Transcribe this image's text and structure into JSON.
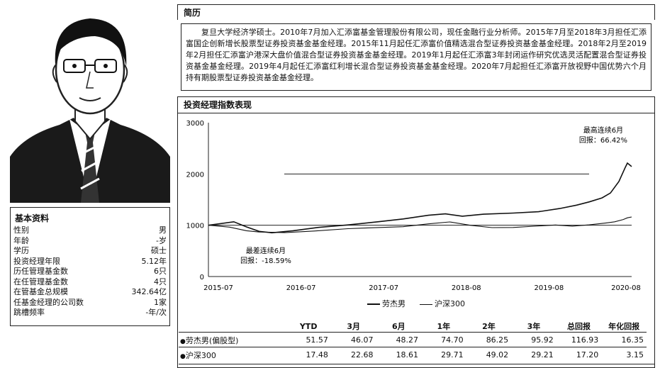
{
  "bio_section": {
    "title": "简历",
    "text": "复旦大学经济学硕士。2010年7月加入汇添富基金管理股份有限公司，现任金融行业分析师。2015年7月至2018年3月担任汇添富国企创新增长股票型证券投资基金基金经理。2015年11月起任汇添富价值精选混合型证券投资基金基金经理。2018年2月至2019年2月担任汇添富沪港深大盘价值混合型证券投资基金基金经理。2019年1月起任汇添富3年封闭运作研究优选灵活配置混合型证券投资基金基金经理。2019年4月起任汇添富红利增长混合型证券投资基金基金经理。2020年7月起担任汇添富开放视野中国优势六个月持有期股票型证券投资基金基金经理。"
  },
  "basic_info": {
    "title": "基本资料",
    "rows": [
      {
        "label": "性别",
        "value": "男"
      },
      {
        "label": "年龄",
        "value": "-岁"
      },
      {
        "label": "学历",
        "value": "硕士"
      },
      {
        "label": "投资经理年限",
        "value": "5.12年"
      },
      {
        "label": "历任管理基金数",
        "value": "6只"
      },
      {
        "label": "在任管理基金数",
        "value": "4只"
      },
      {
        "label": "在管基金总规模",
        "value": "342.64亿"
      },
      {
        "label": "任基金经理的公司数",
        "value": "1家"
      },
      {
        "label": "跳槽频率",
        "value": "-年/次"
      }
    ]
  },
  "chart_section": {
    "title": "投资经理指数表现"
  },
  "chart_data": {
    "type": "line",
    "title": "",
    "ylim": [
      0,
      3000
    ],
    "yticks": [
      0,
      1000,
      2000,
      3000
    ],
    "xticks": [
      "2015-07",
      "2016-07",
      "2017-07",
      "2018-08",
      "2019-08",
      "2020-08"
    ],
    "series": [
      {
        "name": "劳杰男",
        "color": "#111111",
        "points": [
          [
            0,
            1000
          ],
          [
            0.06,
            1060
          ],
          [
            0.09,
            960
          ],
          [
            0.12,
            880
          ],
          [
            0.15,
            860
          ],
          [
            0.2,
            900
          ],
          [
            0.26,
            960
          ],
          [
            0.33,
            1000
          ],
          [
            0.4,
            1060
          ],
          [
            0.46,
            1120
          ],
          [
            0.52,
            1200
          ],
          [
            0.56,
            1230
          ],
          [
            0.6,
            1180
          ],
          [
            0.65,
            1210
          ],
          [
            0.72,
            1230
          ],
          [
            0.78,
            1260
          ],
          [
            0.83,
            1330
          ],
          [
            0.87,
            1400
          ],
          [
            0.9,
            1460
          ],
          [
            0.93,
            1530
          ],
          [
            0.95,
            1620
          ],
          [
            0.97,
            1850
          ],
          [
            0.985,
            2130
          ],
          [
            0.99,
            2220
          ],
          [
            1.0,
            2150
          ]
        ]
      },
      {
        "name": "沪深300",
        "color": "#111111",
        "points": [
          [
            0,
            1000
          ],
          [
            0.05,
            970
          ],
          [
            0.09,
            900
          ],
          [
            0.12,
            870
          ],
          [
            0.18,
            850
          ],
          [
            0.25,
            880
          ],
          [
            0.33,
            930
          ],
          [
            0.4,
            960
          ],
          [
            0.46,
            980
          ],
          [
            0.52,
            1030
          ],
          [
            0.57,
            1060
          ],
          [
            0.62,
            990
          ],
          [
            0.67,
            950
          ],
          [
            0.72,
            960
          ],
          [
            0.77,
            990
          ],
          [
            0.82,
            1010
          ],
          [
            0.86,
            980
          ],
          [
            0.9,
            1000
          ],
          [
            0.94,
            1040
          ],
          [
            0.96,
            1070
          ],
          [
            0.98,
            1120
          ],
          [
            0.99,
            1150
          ],
          [
            1.0,
            1160
          ]
        ]
      }
    ],
    "reference_line": 1000,
    "annotations": [
      {
        "line1": "最高连续6月",
        "line2": "回报：66.42%"
      },
      {
        "line1": "最差连续6月",
        "line2": "回报：-18.59%"
      }
    ],
    "legend": [
      "劳杰男",
      "沪深300"
    ]
  },
  "returns_table": {
    "headers": [
      "YTD",
      "3月",
      "6月",
      "1年",
      "2年",
      "3年",
      "总回报",
      "年化回报"
    ],
    "rows": [
      {
        "marker": "●",
        "name": "劳杰男(偏股型)",
        "values": [
          "51.57",
          "46.07",
          "48.27",
          "74.70",
          "86.25",
          "95.92",
          "116.93",
          "16.35"
        ]
      },
      {
        "marker": "●",
        "name": "沪深300",
        "values": [
          "17.48",
          "22.68",
          "18.61",
          "29.71",
          "49.02",
          "29.21",
          "17.20",
          "3.15"
        ]
      }
    ]
  }
}
